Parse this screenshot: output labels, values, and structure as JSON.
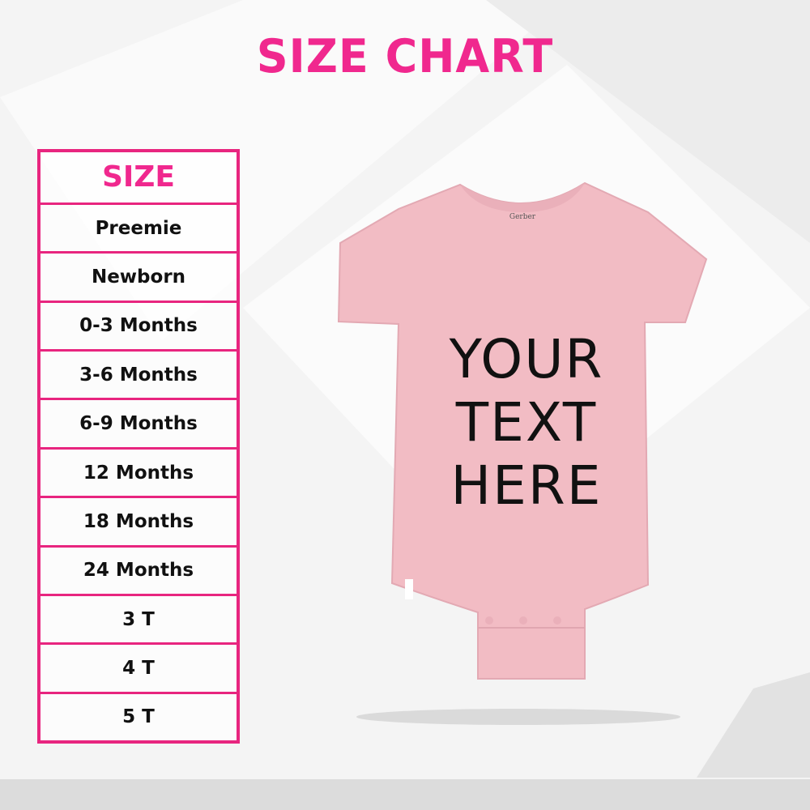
{
  "title": "SIZE CHART",
  "table": {
    "header": "SIZE",
    "rows": [
      "Preemie",
      "Newborn",
      "0-3 Months",
      "3-6 Months",
      "6-9 Months",
      "12 Months",
      "18 Months",
      "24 Months",
      "3 T",
      "4 T",
      "5 T"
    ]
  },
  "product": {
    "print_lines": [
      "YOUR",
      "TEXT",
      "HERE"
    ],
    "label_logo": "Gerber",
    "color": "#f2bcc4"
  },
  "colors": {
    "accent": "#f0288e",
    "border": "#e8257f"
  }
}
